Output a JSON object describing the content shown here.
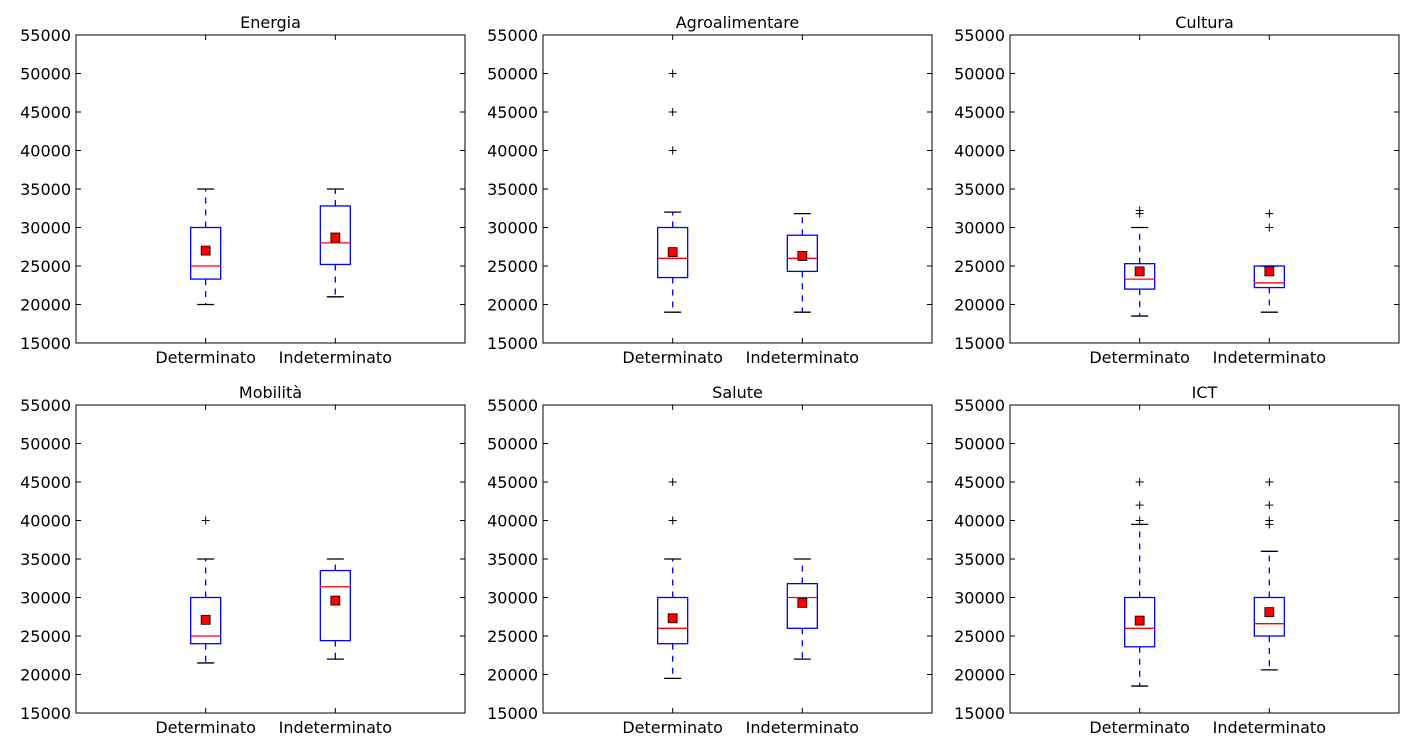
{
  "chart_data": [
    {
      "type": "box",
      "title": "Energia",
      "categories": [
        "Determinato",
        "Indeterminato"
      ],
      "ylim": [
        15000,
        55000
      ],
      "yticks": [
        15000,
        20000,
        25000,
        30000,
        35000,
        40000,
        45000,
        50000,
        55000
      ],
      "boxes": [
        {
          "category": "Determinato",
          "whisker_low": 20000,
          "q1": 23300,
          "median": 25000,
          "q3": 30000,
          "whisker_high": 35000,
          "mean": 27000,
          "outliers": []
        },
        {
          "category": "Indeterminato",
          "whisker_low": 21000,
          "q1": 25200,
          "median": 28000,
          "q3": 32800,
          "whisker_high": 35000,
          "mean": 28700,
          "outliers": []
        }
      ]
    },
    {
      "type": "box",
      "title": "Agroalimentare",
      "categories": [
        "Determinato",
        "Indeterminato"
      ],
      "ylim": [
        15000,
        55000
      ],
      "yticks": [
        15000,
        20000,
        25000,
        30000,
        35000,
        40000,
        45000,
        50000,
        55000
      ],
      "boxes": [
        {
          "category": "Determinato",
          "whisker_low": 19000,
          "q1": 23500,
          "median": 26000,
          "q3": 30000,
          "whisker_high": 32000,
          "mean": 26800,
          "outliers": [
            40000,
            45000,
            50000
          ]
        },
        {
          "category": "Indeterminato",
          "whisker_low": 19000,
          "q1": 24300,
          "median": 26000,
          "q3": 29000,
          "whisker_high": 31800,
          "mean": 26300,
          "outliers": []
        }
      ]
    },
    {
      "type": "box",
      "title": "Cultura",
      "categories": [
        "Determinato",
        "Indeterminato"
      ],
      "ylim": [
        15000,
        55000
      ],
      "yticks": [
        15000,
        20000,
        25000,
        30000,
        35000,
        40000,
        45000,
        50000,
        55000
      ],
      "boxes": [
        {
          "category": "Determinato",
          "whisker_low": 18500,
          "q1": 22000,
          "median": 23300,
          "q3": 25300,
          "whisker_high": 30000,
          "mean": 24300,
          "outliers": [
            31800,
            32200
          ]
        },
        {
          "category": "Indeterminato",
          "whisker_low": 19000,
          "q1": 22200,
          "median": 22800,
          "q3": 25000,
          "whisker_high": 25000,
          "mean": 24300,
          "outliers": [
            30000,
            31800
          ]
        }
      ]
    },
    {
      "type": "box",
      "title": "Mobilità",
      "categories": [
        "Determinato",
        "Indeterminato"
      ],
      "ylim": [
        15000,
        55000
      ],
      "yticks": [
        15000,
        20000,
        25000,
        30000,
        35000,
        40000,
        45000,
        50000,
        55000
      ],
      "boxes": [
        {
          "category": "Determinato",
          "whisker_low": 21500,
          "q1": 24000,
          "median": 25000,
          "q3": 30000,
          "whisker_high": 35000,
          "mean": 27100,
          "outliers": [
            40000
          ]
        },
        {
          "category": "Indeterminato",
          "whisker_low": 22000,
          "q1": 24400,
          "median": 31400,
          "q3": 33500,
          "whisker_high": 35000,
          "mean": 29600,
          "outliers": []
        }
      ]
    },
    {
      "type": "box",
      "title": "Salute",
      "categories": [
        "Determinato",
        "Indeterminato"
      ],
      "ylim": [
        15000,
        55000
      ],
      "yticks": [
        15000,
        20000,
        25000,
        30000,
        35000,
        40000,
        45000,
        50000,
        55000
      ],
      "boxes": [
        {
          "category": "Determinato",
          "whisker_low": 19500,
          "q1": 24000,
          "median": 26000,
          "q3": 30000,
          "whisker_high": 35000,
          "mean": 27300,
          "outliers": [
            40000,
            45000
          ]
        },
        {
          "category": "Indeterminato",
          "whisker_low": 22000,
          "q1": 26000,
          "median": 30000,
          "q3": 31800,
          "whisker_high": 35000,
          "mean": 29300,
          "outliers": []
        }
      ]
    },
    {
      "type": "box",
      "title": "ICT",
      "categories": [
        "Determinato",
        "Indeterminato"
      ],
      "ylim": [
        15000,
        55000
      ],
      "yticks": [
        15000,
        20000,
        25000,
        30000,
        35000,
        40000,
        45000,
        50000,
        55000
      ],
      "boxes": [
        {
          "category": "Determinato",
          "whisker_low": 18500,
          "q1": 23600,
          "median": 26000,
          "q3": 30000,
          "whisker_high": 39500,
          "mean": 27000,
          "outliers": [
            40000,
            42000,
            45000
          ]
        },
        {
          "category": "Indeterminato",
          "whisker_low": 20600,
          "q1": 25000,
          "median": 26600,
          "q3": 30000,
          "whisker_high": 36000,
          "mean": 28100,
          "outliers": [
            39500,
            40000,
            42000,
            45000
          ]
        }
      ]
    }
  ],
  "colors": {
    "box": "#0000ff",
    "median": "#ff0000",
    "mean_fill": "#ff0000",
    "mean_edge": "#000000",
    "axes": "#000000",
    "flier": "#000000"
  }
}
